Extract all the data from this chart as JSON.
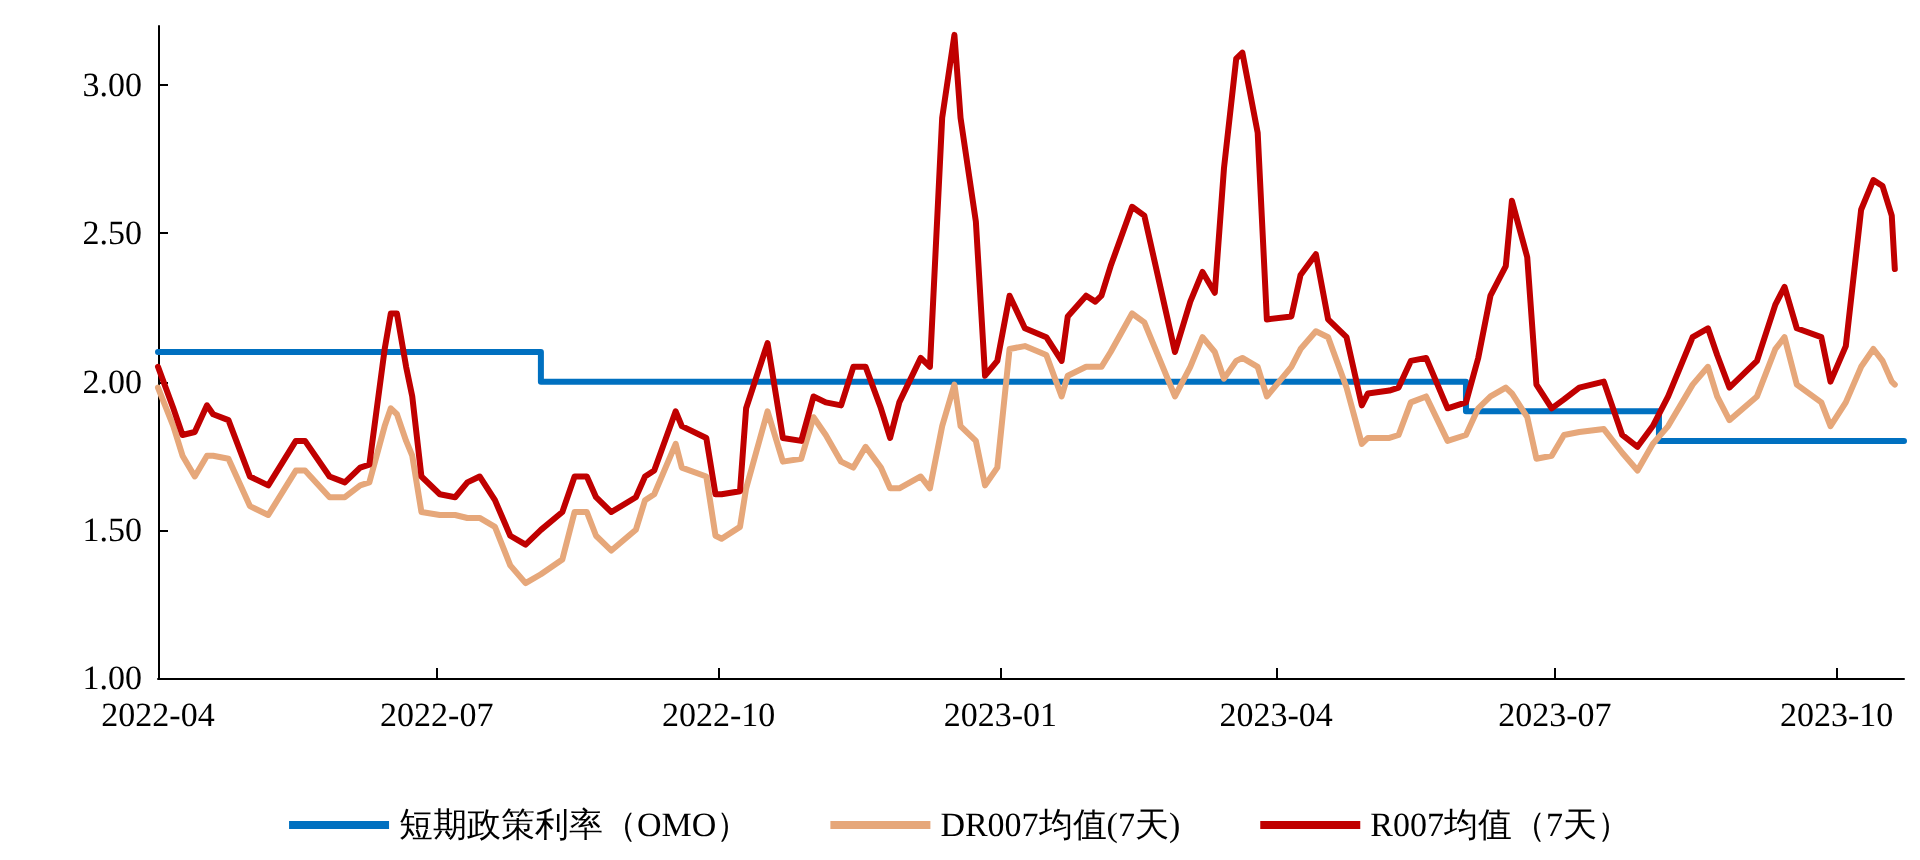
{
  "chart_data": {
    "type": "line",
    "legend": "bottom",
    "grid": false,
    "marker": "none",
    "line_style": "solid",
    "xlim": [
      "2022-04-01",
      "2023-10-23"
    ],
    "xticks": [
      {
        "value": "2022-04-01",
        "label": "2022-04"
      },
      {
        "value": "2022-07-01",
        "label": "2022-07"
      },
      {
        "value": "2022-10-01",
        "label": "2022-10"
      },
      {
        "value": "2023-01-01",
        "label": "2023-01"
      },
      {
        "value": "2023-04-01",
        "label": "2023-04"
      },
      {
        "value": "2023-07-01",
        "label": "2023-07"
      },
      {
        "value": "2023-10-01",
        "label": "2023-10"
      }
    ],
    "ylim": [
      1,
      3.2
    ],
    "yticks": [
      {
        "value": 1,
        "label": "1.00"
      },
      {
        "value": 1.5,
        "label": "1.50"
      },
      {
        "value": 2,
        "label": "2.00"
      },
      {
        "value": 2.5,
        "label": "2.50"
      },
      {
        "value": 3,
        "label": "3.00"
      }
    ],
    "x": [
      "2022-04-01",
      "2022-04-06",
      "2022-04-09",
      "2022-04-13",
      "2022-04-17",
      "2022-04-19",
      "2022-04-24",
      "2022-05-01",
      "2022-05-07",
      "2022-05-16",
      "2022-05-19",
      "2022-05-27",
      "2022-06-01",
      "2022-06-06",
      "2022-06-09",
      "2022-06-14",
      "2022-06-16",
      "2022-06-18",
      "2022-06-21",
      "2022-06-23",
      "2022-06-26",
      "2022-07-02",
      "2022-07-07",
      "2022-07-11",
      "2022-07-15",
      "2022-07-20",
      "2022-07-25",
      "2022-07-30",
      "2022-08-04",
      "2022-08-11",
      "2022-08-15",
      "2022-08-19",
      "2022-08-22",
      "2022-08-27",
      "2022-09-04",
      "2022-09-07",
      "2022-09-10",
      "2022-09-17",
      "2022-09-19",
      "2022-09-27",
      "2022-09-30",
      "2022-10-02",
      "2022-10-08",
      "2022-10-10",
      "2022-10-17",
      "2022-10-22",
      "2022-10-28",
      "2022-11-01",
      "2022-11-05",
      "2022-11-10",
      "2022-11-14",
      "2022-11-18",
      "2022-11-23",
      "2022-11-26",
      "2022-11-29",
      "2022-12-06",
      "2022-12-09",
      "2022-12-13",
      "2022-12-17",
      "2022-12-19",
      "2022-12-24",
      "2022-12-27",
      "2022-12-31",
      "2023-01-04",
      "2023-01-09",
      "2023-01-16",
      "2023-01-21",
      "2023-01-23",
      "2023-01-29",
      "2023-02-01",
      "2023-02-03",
      "2023-02-06",
      "2023-02-13",
      "2023-02-17",
      "2023-02-27",
      "2023-03-04",
      "2023-03-08",
      "2023-03-12",
      "2023-03-15",
      "2023-03-19",
      "2023-03-21",
      "2023-03-26",
      "2023-03-29",
      "2023-04-06",
      "2023-04-09",
      "2023-04-14",
      "2023-04-18",
      "2023-04-24",
      "2023-04-29",
      "2023-05-01",
      "2023-05-08",
      "2023-05-11",
      "2023-05-15",
      "2023-05-20",
      "2023-05-27",
      "2023-06-02",
      "2023-06-06",
      "2023-06-10",
      "2023-06-15",
      "2023-06-17",
      "2023-06-22",
      "2023-06-25",
      "2023-06-30",
      "2023-07-04",
      "2023-07-09",
      "2023-07-17",
      "2023-07-23",
      "2023-07-28",
      "2023-08-02",
      "2023-08-07",
      "2023-08-15",
      "2023-08-20",
      "2023-08-23",
      "2023-08-27",
      "2023-09-05",
      "2023-09-11",
      "2023-09-14",
      "2023-09-18",
      "2023-09-26",
      "2023-09-29",
      "2023-10-04",
      "2023-10-09",
      "2023-10-13",
      "2023-10-16",
      "2023-10-19",
      "2023-10-20"
    ],
    "series": [
      {
        "name": "短期政策利率（OMO）",
        "type": "step",
        "color": "#0070c0",
        "x": [
          "2022-04-01",
          "2022-08-04",
          "2023-06-02",
          "2023-08-04",
          "2023-10-23"
        ],
        "values": [
          2.1,
          2.0,
          1.9,
          1.8,
          1.8
        ]
      },
      {
        "name": "DR007均值(7天)",
        "color": "#e6a77a",
        "values": [
          1.98,
          1.85,
          1.75,
          1.68,
          1.75,
          1.75,
          1.74,
          1.58,
          1.55,
          1.7,
          1.7,
          1.61,
          1.61,
          1.65,
          1.66,
          1.85,
          1.91,
          1.89,
          1.8,
          1.75,
          1.56,
          1.55,
          1.55,
          1.54,
          1.54,
          1.51,
          1.38,
          1.32,
          1.35,
          1.4,
          1.56,
          1.56,
          1.48,
          1.43,
          1.5,
          1.6,
          1.62,
          1.79,
          1.71,
          1.68,
          1.48,
          1.47,
          1.51,
          1.64,
          1.9,
          1.73,
          1.74,
          1.88,
          1.82,
          1.73,
          1.71,
          1.78,
          1.71,
          1.64,
          1.64,
          1.68,
          1.64,
          1.85,
          1.99,
          1.85,
          1.8,
          1.65,
          1.71,
          2.11,
          2.12,
          2.09,
          1.95,
          2.02,
          2.05,
          2.05,
          2.05,
          2.1,
          2.23,
          2.2,
          1.95,
          2.05,
          2.15,
          2.1,
          2.01,
          2.07,
          2.08,
          2.05,
          1.95,
          2.05,
          2.11,
          2.17,
          2.15,
          1.98,
          1.79,
          1.81,
          1.81,
          1.82,
          1.93,
          1.95,
          1.8,
          1.82,
          1.91,
          1.95,
          1.98,
          1.96,
          1.88,
          1.74,
          1.75,
          1.82,
          1.83,
          1.84,
          1.76,
          1.7,
          1.79,
          1.85,
          1.99,
          2.05,
          1.95,
          1.87,
          1.95,
          2.11,
          2.15,
          1.99,
          1.93,
          1.85,
          1.93,
          2.05,
          2.11,
          2.07,
          2.0,
          1.99
        ]
      },
      {
        "name": "R007均值（7天）",
        "color": "#c00000",
        "values": [
          2.05,
          1.91,
          1.82,
          1.83,
          1.92,
          1.89,
          1.87,
          1.68,
          1.65,
          1.8,
          1.8,
          1.68,
          1.66,
          1.71,
          1.72,
          2.11,
          2.23,
          2.23,
          2.05,
          1.95,
          1.68,
          1.62,
          1.61,
          1.66,
          1.68,
          1.6,
          1.48,
          1.45,
          1.5,
          1.56,
          1.68,
          1.68,
          1.61,
          1.56,
          1.61,
          1.68,
          1.7,
          1.9,
          1.85,
          1.81,
          1.62,
          1.62,
          1.63,
          1.91,
          2.13,
          1.81,
          1.8,
          1.95,
          1.93,
          1.92,
          2.05,
          2.05,
          1.91,
          1.81,
          1.93,
          2.08,
          2.05,
          2.89,
          3.17,
          2.89,
          2.54,
          2.02,
          2.07,
          2.29,
          2.18,
          2.15,
          2.07,
          2.22,
          2.29,
          2.27,
          2.29,
          2.39,
          2.59,
          2.56,
          2.1,
          2.27,
          2.37,
          2.3,
          2.72,
          3.09,
          3.11,
          2.84,
          2.21,
          2.22,
          2.36,
          2.43,
          2.21,
          2.15,
          1.92,
          1.96,
          1.97,
          1.98,
          2.07,
          2.08,
          1.91,
          1.93,
          2.08,
          2.29,
          2.39,
          2.61,
          2.42,
          1.99,
          1.91,
          1.94,
          1.98,
          2.0,
          1.82,
          1.78,
          1.85,
          1.95,
          2.15,
          2.18,
          2.09,
          1.98,
          2.07,
          2.26,
          2.32,
          2.18,
          2.15,
          2.0,
          2.12,
          2.58,
          2.68,
          2.66,
          2.56,
          2.38
        ]
      }
    ]
  }
}
